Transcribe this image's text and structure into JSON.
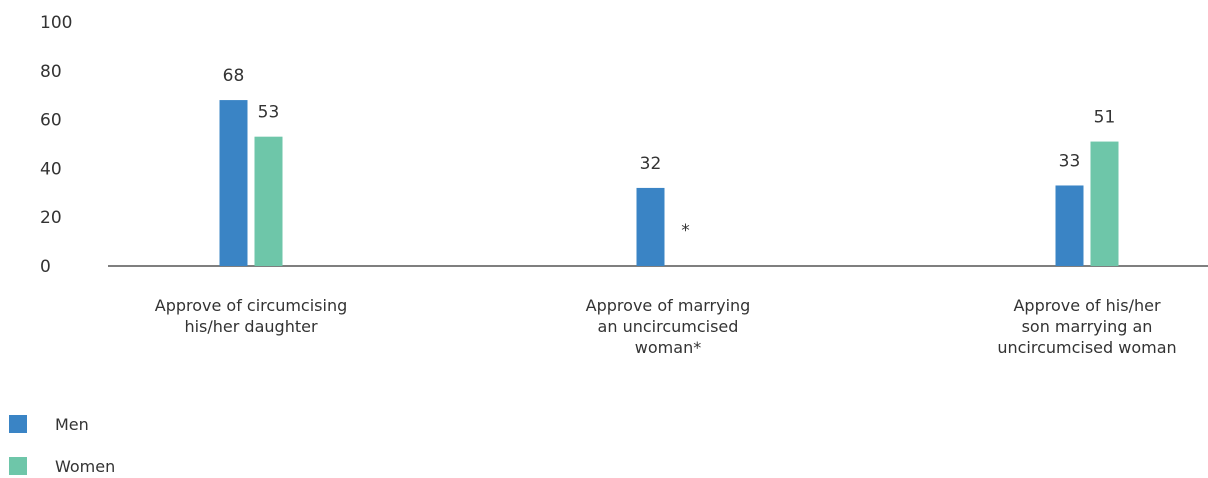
{
  "chart_data": {
    "type": "bar",
    "categories": [
      [
        "Approve of circumcising",
        "his/her daughter"
      ],
      [
        "Approve of marrying",
        "an uncircumcised",
        "woman*"
      ],
      [
        "Approve of his/her",
        "son marrying an",
        "uncircumcised woman"
      ]
    ],
    "series": [
      {
        "name": "Men",
        "color": "#3a84c5",
        "values": [
          68,
          32,
          33
        ],
        "labels": [
          "68",
          "32",
          "33"
        ]
      },
      {
        "name": "Women",
        "color": "#6ec6a9",
        "values": [
          53,
          null,
          51
        ],
        "labels": [
          "53",
          "*",
          "51"
        ]
      }
    ],
    "ylim": [
      0,
      100
    ],
    "yticks": [
      0,
      20,
      40,
      60,
      80,
      100
    ],
    "ytick_labels": [
      "0",
      "20",
      "40",
      "60",
      "80",
      "100"
    ],
    "title": "",
    "xlabel": "",
    "ylabel": "",
    "legend_position": "bottom-left",
    "grid": false
  }
}
